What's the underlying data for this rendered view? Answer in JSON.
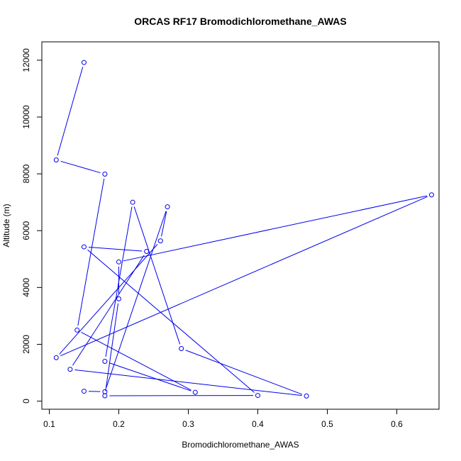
{
  "chart_data": {
    "type": "line",
    "title": "ORCAS RF17 Bromodichloromethane_AWAS",
    "xlabel": "Bromodichloromethane_AWAS",
    "ylabel": "Altitude (m)",
    "xlim": [
      0.0893,
      0.6607
    ],
    "ylim": [
      -285,
      12646
    ],
    "xticks": [
      0.1,
      0.2,
      0.3,
      0.4,
      0.5,
      0.6
    ],
    "xtick_labels": [
      "0.1",
      "0.2",
      "0.3",
      "0.4",
      "0.5",
      "0.6"
    ],
    "yticks": [
      0,
      2000,
      4000,
      6000,
      8000,
      10000,
      12000
    ],
    "ytick_labels": [
      "0",
      "2000",
      "4000",
      "6000",
      "8000",
      "10000",
      "12000"
    ],
    "grid": false,
    "colors": {
      "series": "#0000ee",
      "axis": "#000000",
      "background": "#ffffff"
    },
    "series": [
      {
        "marker": "open-circle",
        "points": [
          {
            "x": 0.15,
            "y": 11920
          },
          {
            "x": 0.11,
            "y": 8490
          },
          {
            "x": 0.18,
            "y": 7990
          },
          {
            "x": 0.14,
            "y": 2500
          },
          {
            "x": 0.31,
            "y": 310
          },
          {
            "x": 0.18,
            "y": 1400
          },
          {
            "x": 0.22,
            "y": 7000
          },
          {
            "x": 0.29,
            "y": 1850
          },
          {
            "x": 0.47,
            "y": 180
          },
          {
            "x": 0.13,
            "y": 1120
          },
          {
            "x": 0.24,
            "y": 5270
          },
          {
            "x": 0.15,
            "y": 5430
          },
          {
            "x": 0.4,
            "y": 200
          },
          {
            "x": 0.18,
            "y": 190
          },
          {
            "x": 0.2,
            "y": 3600
          },
          {
            "x": 0.2,
            "y": 4900
          },
          {
            "x": 0.65,
            "y": 7260
          },
          {
            "x": 0.11,
            "y": 1530
          },
          {
            "x": 0.26,
            "y": 5640
          },
          {
            "x": 0.27,
            "y": 6840
          },
          {
            "x": 0.18,
            "y": 330
          },
          {
            "x": 0.15,
            "y": 350
          }
        ]
      }
    ]
  }
}
